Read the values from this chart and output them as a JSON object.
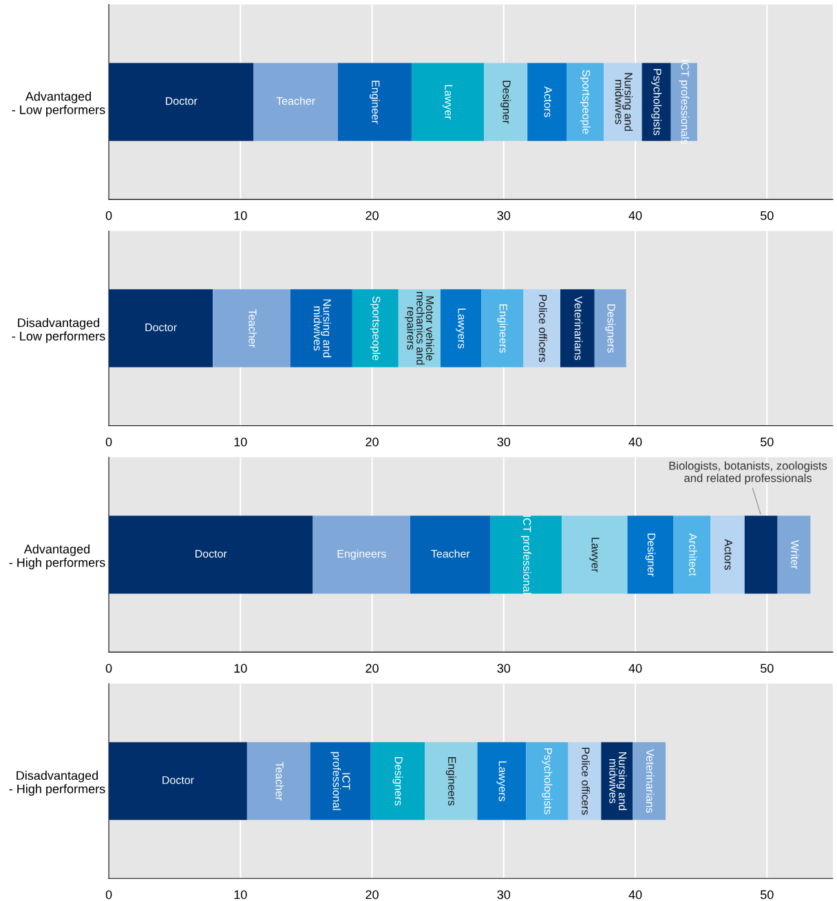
{
  "chart_data": [
    {
      "type": "bar",
      "orientation": "horizontal",
      "stacked": true,
      "categories": [
        "Advantaged\n- Low performers"
      ],
      "xlim": [
        0,
        55
      ],
      "xticks": [
        0,
        10,
        20,
        30,
        40,
        50
      ],
      "grid": "x",
      "legend": false,
      "series": [
        {
          "name": "Doctor",
          "color": "#002f6c",
          "values": [
            11.0
          ]
        },
        {
          "name": "Teacher",
          "color": "#7fa8d9",
          "values": [
            6.4
          ]
        },
        {
          "name": "Engineer",
          "color": "#0063b8",
          "values": [
            5.6
          ]
        },
        {
          "name": "Lawyer",
          "color": "#00a9c6",
          "values": [
            5.5
          ]
        },
        {
          "name": "Designer",
          "color": "#8fd3e8",
          "values": [
            3.3
          ]
        },
        {
          "name": "Actors",
          "color": "#0075c9",
          "values": [
            3.0
          ]
        },
        {
          "name": "Sportspeople",
          "color": "#4fb3e8",
          "values": [
            2.8
          ]
        },
        {
          "name": "Nursing and\nmidwives",
          "color": "#b7d4f0",
          "values": [
            2.9
          ]
        },
        {
          "name": "Psychologists",
          "color": "#002f6c",
          "values": [
            2.2
          ]
        },
        {
          "name": "ICT professionals",
          "color": "#7fa8d9",
          "values": [
            2.0
          ]
        }
      ]
    },
    {
      "type": "bar",
      "orientation": "horizontal",
      "stacked": true,
      "categories": [
        "Disadvantaged\n- Low performers"
      ],
      "xlim": [
        0,
        55
      ],
      "xticks": [
        0,
        10,
        20,
        30,
        40,
        50
      ],
      "grid": "x",
      "legend": false,
      "series": [
        {
          "name": "Doctor",
          "color": "#002f6c",
          "values": [
            7.9
          ]
        },
        {
          "name": "Teacher",
          "color": "#7fa8d9",
          "values": [
            5.9
          ]
        },
        {
          "name": "Nursing and\nmidwives",
          "color": "#0063b8",
          "values": [
            4.7
          ]
        },
        {
          "name": "Sportspeople",
          "color": "#00a9c6",
          "values": [
            3.5
          ]
        },
        {
          "name": "Motor vehicle\nmechanics and\nrepairers",
          "color": "#8fd3e8",
          "values": [
            3.2
          ]
        },
        {
          "name": "Lawyers",
          "color": "#0075c9",
          "values": [
            3.1
          ]
        },
        {
          "name": "Engineers",
          "color": "#4fb3e8",
          "values": [
            3.2
          ]
        },
        {
          "name": "Police officers",
          "color": "#b7d4f0",
          "values": [
            2.8
          ]
        },
        {
          "name": "Veterinarians",
          "color": "#002f6c",
          "values": [
            2.6
          ]
        },
        {
          "name": "Designers",
          "color": "#7fa8d9",
          "values": [
            2.4
          ]
        }
      ]
    },
    {
      "type": "bar",
      "orientation": "horizontal",
      "stacked": true,
      "categories": [
        "Advantaged\n- High performers"
      ],
      "xlim": [
        0,
        55
      ],
      "xticks": [
        0,
        10,
        20,
        30,
        40,
        50
      ],
      "grid": "x",
      "legend": false,
      "annotations": [
        "Biologists, botanists, zoologists\nand related professionals"
      ],
      "series": [
        {
          "name": "Doctor",
          "color": "#002f6c",
          "values": [
            15.5
          ]
        },
        {
          "name": "Engineers",
          "color": "#7fa8d9",
          "values": [
            7.4
          ]
        },
        {
          "name": "Teacher",
          "color": "#0063b8",
          "values": [
            6.1
          ]
        },
        {
          "name": "ICT professional",
          "color": "#00a9c6",
          "values": [
            5.4
          ]
        },
        {
          "name": "Lawyer",
          "color": "#8fd3e8",
          "values": [
            5.0
          ]
        },
        {
          "name": "Designer",
          "color": "#0075c9",
          "values": [
            3.5
          ]
        },
        {
          "name": "Architect",
          "color": "#4fb3e8",
          "values": [
            2.8
          ]
        },
        {
          "name": "Actors",
          "color": "#b7d4f0",
          "values": [
            2.6
          ]
        },
        {
          "color": "#002f6c",
          "values": [
            2.5
          ]
        },
        {
          "name": "Writer",
          "color": "#7fa8d9",
          "values": [
            2.5
          ]
        }
      ]
    },
    {
      "type": "bar",
      "orientation": "horizontal",
      "stacked": true,
      "categories": [
        "Disadvantaged\n- High performers"
      ],
      "xlim": [
        0,
        55
      ],
      "xticks": [
        0,
        10,
        20,
        30,
        40,
        50
      ],
      "grid": "x",
      "legend": false,
      "series": [
        {
          "name": "Doctor",
          "color": "#002f6c",
          "values": [
            10.5
          ]
        },
        {
          "name": "Teacher",
          "color": "#7fa8d9",
          "values": [
            4.8
          ]
        },
        {
          "name": "ICT\nprofessional",
          "color": "#0063b8",
          "values": [
            4.6
          ]
        },
        {
          "name": "Designers",
          "color": "#00a9c6",
          "values": [
            4.1
          ]
        },
        {
          "name": "Engineers",
          "color": "#8fd3e8",
          "values": [
            4.0
          ]
        },
        {
          "name": "Lawyers",
          "color": "#0075c9",
          "values": [
            3.7
          ]
        },
        {
          "name": "Psychologists",
          "color": "#4fb3e8",
          "values": [
            3.2
          ]
        },
        {
          "name": "Police officers",
          "color": "#b7d4f0",
          "values": [
            2.5
          ]
        },
        {
          "name": "Nursing and\nmidwives",
          "color": "#002f6c",
          "values": [
            2.4
          ]
        },
        {
          "name": "Veterinarians",
          "color": "#7fa8d9",
          "values": [
            2.5
          ]
        }
      ]
    }
  ]
}
